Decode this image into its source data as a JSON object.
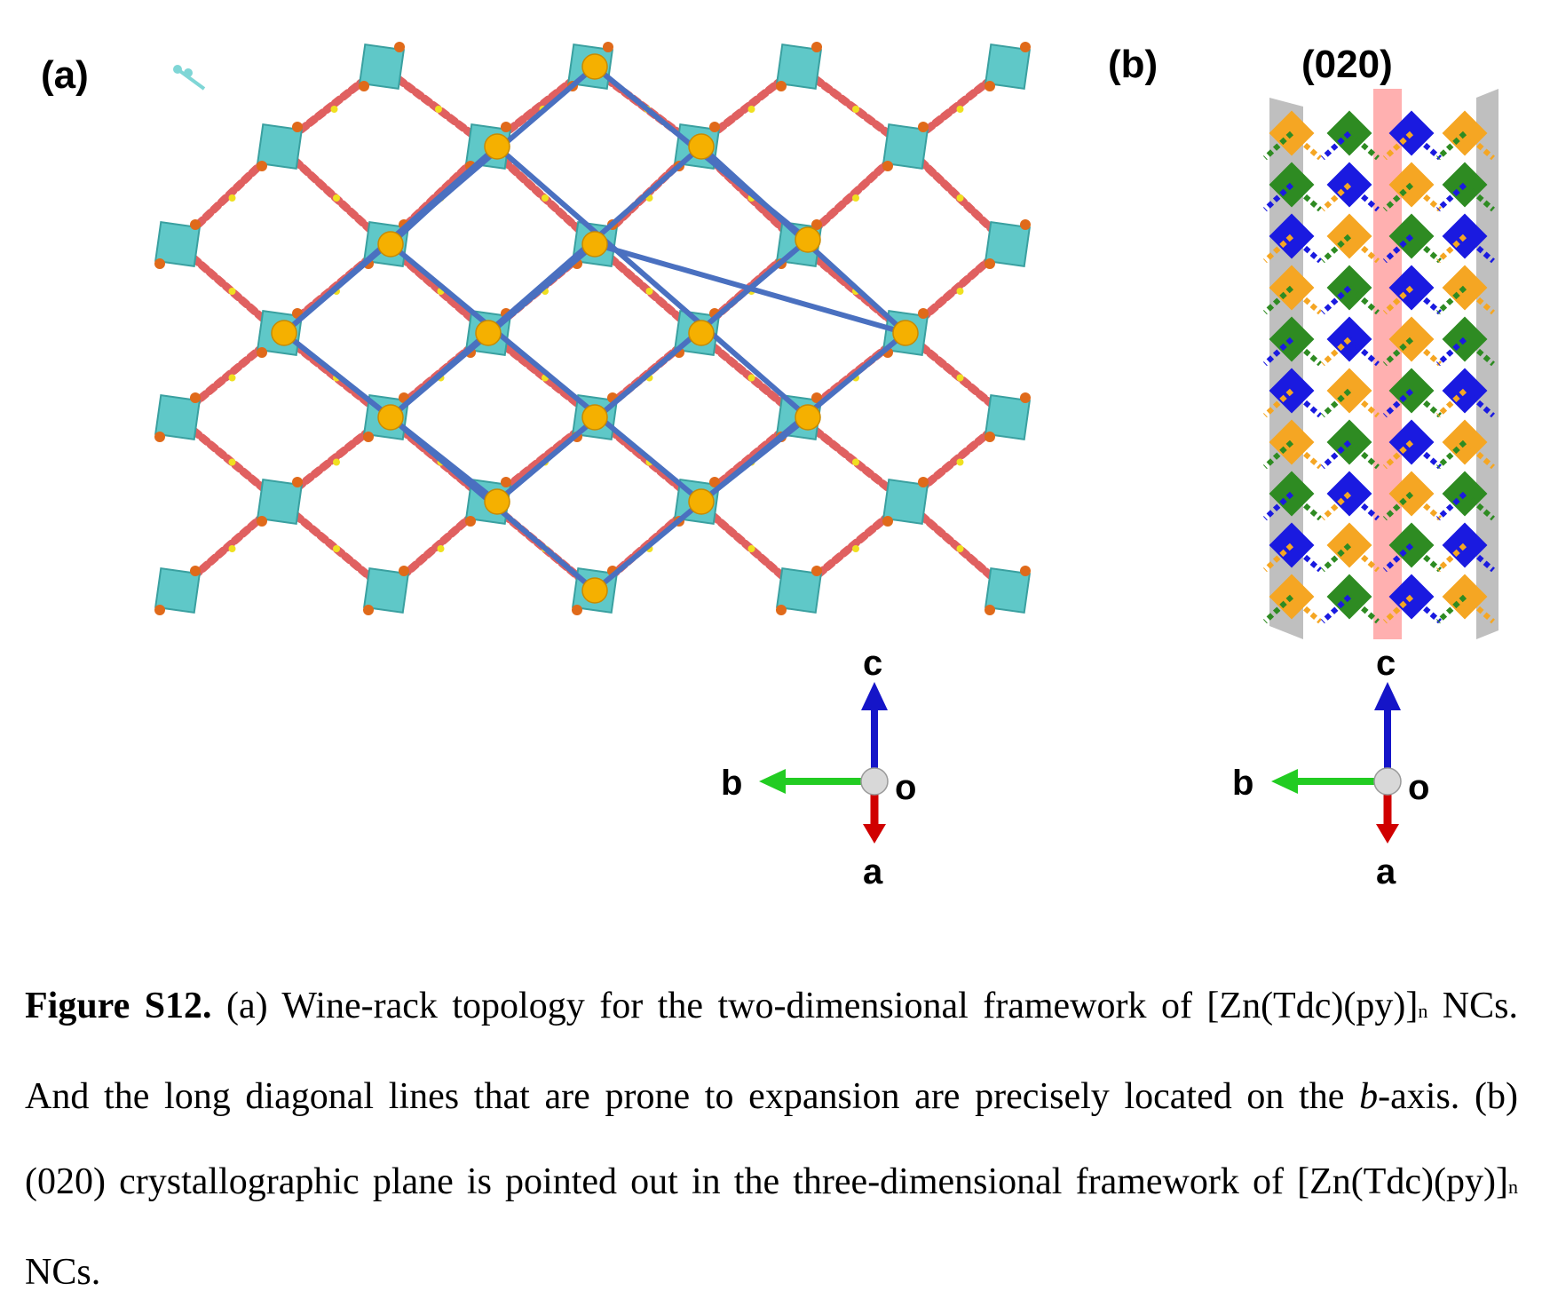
{
  "figure": {
    "panel_a_label": "(a)",
    "panel_b_label": "(b)",
    "plane_label": "(020)",
    "axes_a": {
      "c": "c",
      "b": "b",
      "o": "o",
      "a": "a"
    },
    "axes_b": {
      "c": "c",
      "b": "b",
      "o": "o",
      "a": "a"
    }
  },
  "colors": {
    "zn_polyhedra": "#5fc8c8",
    "linker": "#e06060",
    "sulfur": "#f0e020",
    "node": "#f5b000",
    "topology_line": "#4a70c0",
    "layer_orange": "#f5a623",
    "layer_green": "#2e8b22",
    "layer_blue": "#1a1ae0",
    "plane_red": "#ff7070",
    "axis_c": "#1515c8",
    "axis_b": "#22cc22",
    "axis_a": "#d00000"
  },
  "caption": {
    "label": "Figure S12.",
    "part1": " (a) Wine-rack topology for the two-dimensional framework of [Zn(Tdc)(py)]",
    "sub1": "n",
    "part2": " NCs. And the long diagonal lines that are prone to expansion are precisely located on the ",
    "b_axis": "b",
    "part3": "-axis. (b) (020) crystallographic plane is pointed out in the three-dimensional framework of [Zn(Tdc)(py)]",
    "sub2": "n",
    "part4": " NCs."
  }
}
